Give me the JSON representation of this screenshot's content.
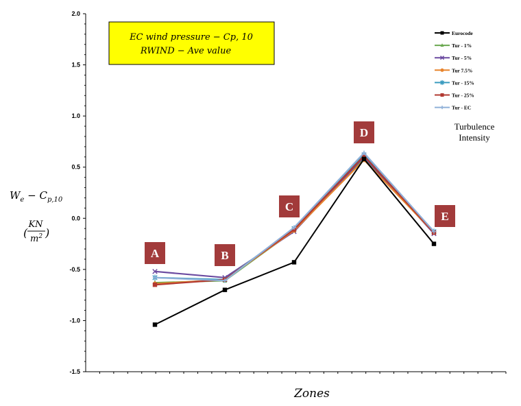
{
  "chart_data": {
    "type": "line",
    "title_lines": [
      "EC wind pressure  − Cp, 10",
      "RWIND  − Ave value"
    ],
    "title_box_color": "#ffff00",
    "xlabel": "Zones",
    "ylabel": {
      "main": "W",
      "main_sub": "e",
      "minus": " − C",
      "minus_sub": "p,10",
      "unit_num": "KN",
      "unit_den": "m",
      "unit_den_sup": "2",
      "paren_open": "(",
      "paren_close": ")"
    },
    "categories": [
      "A",
      "B",
      "C",
      "D",
      "E"
    ],
    "ylim": [
      -1.5,
      2.0
    ],
    "yticks": [
      -1.5,
      -1.0,
      -0.5,
      0.0,
      0.5,
      1.0,
      1.5,
      2.0
    ],
    "ytick_labels": [
      "-1.5",
      "-1.0",
      "-0.5",
      "0.0",
      "0.5",
      "1.0",
      "1.5",
      "2.0"
    ],
    "legend_position": "top-right",
    "legend_note": [
      "Turbulence",
      "Intensity"
    ],
    "zone_box_color": "#a23b3b",
    "grid": false,
    "series": [
      {
        "name": "Eurocode",
        "color": "#000000",
        "marker": "square",
        "values": [
          -1.04,
          -0.7,
          -0.43,
          0.58,
          -0.25
        ]
      },
      {
        "name": "Tur - 1%",
        "color": "#6aa84f",
        "marker": "triangle",
        "values": [
          -0.63,
          -0.61,
          -0.12,
          0.58,
          -0.14
        ]
      },
      {
        "name": "Tur - 5%",
        "color": "#6b4aa0",
        "marker": "x",
        "values": [
          -0.52,
          -0.58,
          -0.13,
          0.6,
          -0.15
        ]
      },
      {
        "name": "Tur 7.5%",
        "color": "#e8842c",
        "marker": "circle",
        "values": [
          -0.64,
          -0.6,
          -0.12,
          0.57,
          -0.14
        ]
      },
      {
        "name": "Tur - 15%",
        "color": "#3a9bbf",
        "marker": "star",
        "values": [
          -0.58,
          -0.6,
          -0.1,
          0.62,
          -0.13
        ]
      },
      {
        "name": "Tur - 25%",
        "color": "#b23a32",
        "marker": "square",
        "values": [
          -0.65,
          -0.6,
          -0.11,
          0.61,
          -0.14
        ]
      },
      {
        "name": "Tur - EC",
        "color": "#8fb0d8",
        "marker": "plus",
        "values": [
          -0.58,
          -0.61,
          -0.09,
          0.64,
          -0.13
        ]
      }
    ]
  }
}
